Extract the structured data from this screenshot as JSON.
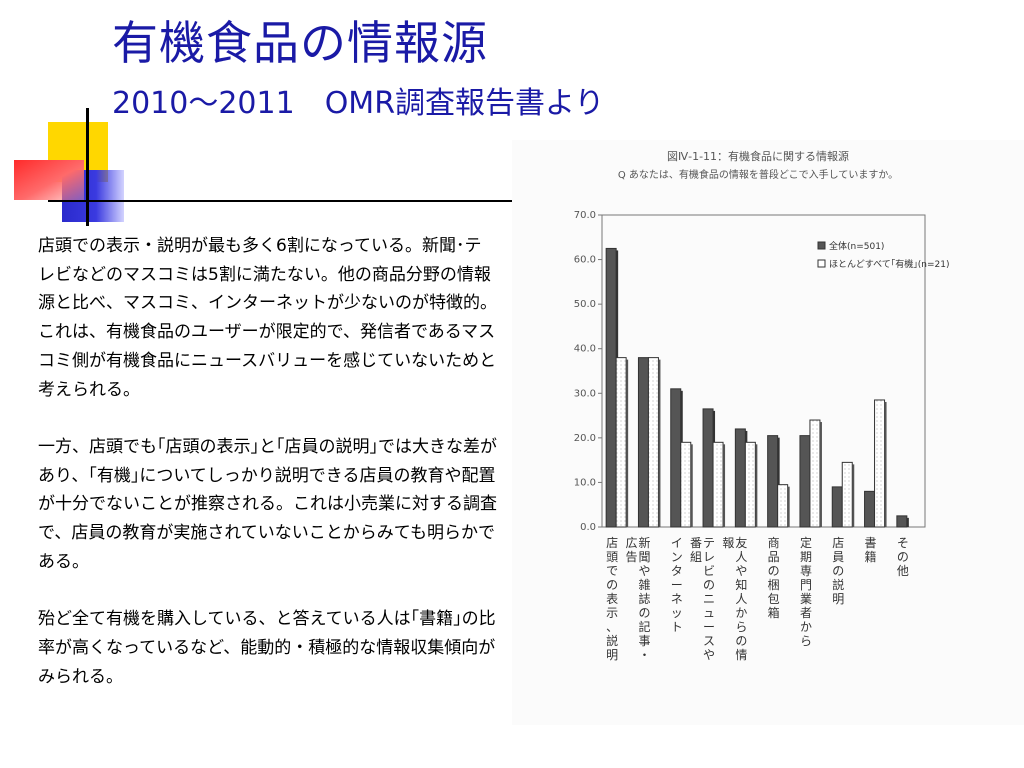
{
  "slide": {
    "title": "有機食品の情報源",
    "subtitle": "2010～2011　OMR調査報告書より",
    "paragraphs": [
      "店頭での表示・説明が最も多く6割になっている。新聞･テレビなどのマスコミは5割に満たない。他の商品分野の情報源と比べ、マスコミ、インターネットが少ないのが特徴的。これは、有機食品のユーザーが限定的で、発信者であるマスコミ側が有機食品にニュースバリューを感じていないためと考えられる。",
      "一方、店頭でも｢店頭の表示｣と｢店員の説明｣では大きな差があり、｢有機｣についてしっかり説明できる店員の教育や配置が十分でないことが推察される。これは小売業に対する調査で、店員の教育が実施されていないことからみても明らかである。",
      "殆ど全て有機を購入している、と答えている人は｢書籍｣の比率が高くなっているなど、能動的・積極的な情報収集傾向がみられる。"
    ]
  },
  "colors": {
    "title": "#1a1aa6",
    "series_all": "#555555",
    "series_organic": "#ffffff"
  },
  "chart_data": {
    "type": "bar",
    "title": "図Ⅳ-1-11：有機食品に関する情報源",
    "subtitle": "Q あなたは、有機食品の情報を普段どこで入手していますか。",
    "categories": [
      "店頭での表示、説明",
      "新聞や雑誌の記事・広告",
      "インターネット",
      "テレビのニュースや番組",
      "友人や知人からの情報",
      "商品の梱包箱",
      "定期専門業者から",
      "店員の説明",
      "書籍",
      "その他"
    ],
    "series": [
      {
        "name": "全体(n=501)",
        "values": [
          62.5,
          38,
          31,
          26.5,
          22,
          20.5,
          20.5,
          9,
          8,
          2.5
        ]
      },
      {
        "name": "ほとんどすべて｢有機｣(n=21)",
        "values": [
          38,
          38,
          19,
          19,
          19,
          9.5,
          24,
          14.5,
          28.5,
          0
        ]
      }
    ],
    "ylim": [
      0,
      70
    ],
    "yticks": [
      "0.0",
      "10.0",
      "20.0",
      "30.0",
      "40.0",
      "50.0",
      "60.0",
      "70.0"
    ],
    "grid": false,
    "legend": "top-right"
  }
}
